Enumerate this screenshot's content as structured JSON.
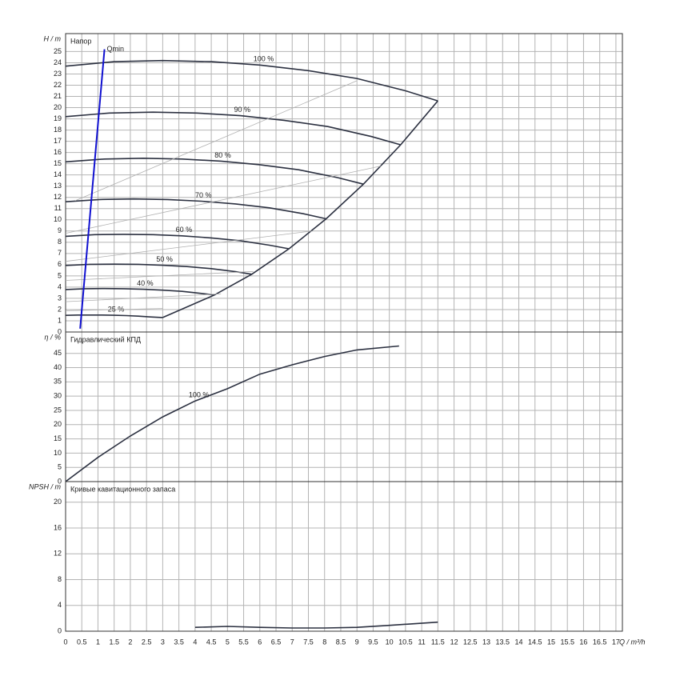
{
  "chart_data": [
    {
      "type": "line",
      "title": "Напор",
      "ylabel": "H / m",
      "xlim": [
        0,
        17.2
      ],
      "ylim": [
        0,
        26.6
      ],
      "yticks": [
        0,
        1,
        2,
        3,
        4,
        5,
        6,
        7,
        8,
        9,
        10,
        11,
        12,
        13,
        14,
        15,
        16,
        17,
        18,
        19,
        20,
        21,
        22,
        23,
        24,
        25
      ],
      "series": [
        {
          "name": "100 %",
          "color": "#2b3040",
          "x": [
            0,
            1.5,
            3,
            4.5,
            6,
            7.5,
            9,
            10.5,
            11.5
          ],
          "values": [
            23.7,
            24.1,
            24.2,
            24.1,
            23.8,
            23.3,
            22.6,
            21.5,
            20.6
          ]
        },
        {
          "name": "90 %",
          "color": "#2b3040",
          "x": [
            0,
            1.35,
            2.7,
            4.05,
            5.4,
            6.75,
            8.1,
            9.45,
            10.35
          ],
          "values": [
            19.2,
            19.52,
            19.6,
            19.52,
            19.28,
            18.87,
            18.31,
            17.42,
            16.69
          ]
        },
        {
          "name": "80 %",
          "color": "#2b3040",
          "x": [
            0,
            1.2,
            2.4,
            3.6,
            4.8,
            6,
            7.2,
            8.4,
            9.2
          ],
          "values": [
            15.17,
            15.42,
            15.49,
            15.42,
            15.23,
            14.91,
            14.46,
            13.76,
            13.18
          ]
        },
        {
          "name": "70 %",
          "color": "#2b3040",
          "x": [
            0,
            1.05,
            2.1,
            3.15,
            4.2,
            5.25,
            6.3,
            7.35,
            8.05
          ],
          "values": [
            11.61,
            11.81,
            11.86,
            11.81,
            11.66,
            11.42,
            11.07,
            10.54,
            10.09
          ]
        },
        {
          "name": "60 %",
          "color": "#2b3040",
          "x": [
            0,
            0.9,
            1.8,
            2.7,
            3.6,
            4.5,
            5.4,
            6.3,
            6.9
          ],
          "values": [
            8.53,
            8.68,
            8.71,
            8.68,
            8.57,
            8.39,
            8.14,
            7.74,
            7.42
          ]
        },
        {
          "name": "50 %",
          "color": "#2b3040",
          "x": [
            0,
            0.75,
            1.5,
            2.25,
            3,
            3.75,
            4.5,
            5.25,
            5.75
          ],
          "values": [
            5.93,
            6.03,
            6.05,
            6.03,
            5.95,
            5.83,
            5.65,
            5.38,
            5.15
          ]
        },
        {
          "name": "40 %",
          "color": "#2b3040",
          "x": [
            0,
            0.6,
            1.2,
            1.8,
            2.4,
            3,
            3.6,
            4.2,
            4.6
          ],
          "values": [
            3.79,
            3.86,
            3.87,
            3.86,
            3.81,
            3.73,
            3.62,
            3.44,
            3.3
          ]
        },
        {
          "name": "25 %",
          "color": "#2b3040",
          "x": [
            0,
            0.375,
            0.75,
            1.125,
            1.5,
            1.875,
            2.25,
            2.625,
            3
          ],
          "values": [
            1.48,
            1.51,
            1.51,
            1.51,
            1.49,
            1.46,
            1.41,
            1.34,
            1.29
          ]
        },
        {
          "color": "#2b3040",
          "x": [
            3,
            4.6,
            5.75,
            6.9,
            8.05,
            9.2,
            10.35,
            11.5
          ],
          "values": [
            1.29,
            3.3,
            5.15,
            7.42,
            10.09,
            13.18,
            16.69,
            20.6
          ]
        },
        {
          "color": "#b0b0b0",
          "x": [
            0.3,
            9.0
          ],
          "values": [
            11.7,
            22.4
          ]
        },
        {
          "color": "#b0b0b0",
          "x": [
            0,
            9.75
          ],
          "values": [
            8.8,
            14.8
          ]
        },
        {
          "color": "#b0b0b0",
          "x": [
            0,
            7.6
          ],
          "values": [
            6.3,
            9.0
          ]
        },
        {
          "color": "#b0b0b0",
          "x": [
            0,
            5.8
          ],
          "values": [
            4.6,
            5.4
          ]
        },
        {
          "color": "#b0b0b0",
          "x": [
            0,
            4.8
          ],
          "values": [
            2.7,
            3.4
          ]
        },
        {
          "color": "#b0b0b0",
          "x": [
            0,
            3
          ],
          "values": [
            1.9,
            2.1
          ]
        },
        {
          "name": "Qmin",
          "color": "#1010d0",
          "x": [
            0.45,
            1.2
          ],
          "values": [
            0.3,
            25.2
          ]
        }
      ]
    },
    {
      "type": "line",
      "title": "Гидравлический КПД",
      "ylabel": "η / %",
      "xlim": [
        0,
        17.2
      ],
      "ylim": [
        0,
        52.5
      ],
      "yticks": [
        0,
        5,
        10,
        15,
        20,
        25,
        30,
        35,
        40,
        45
      ],
      "series": [
        {
          "name": "100 %",
          "color": "#2b3040",
          "x": [
            0,
            1,
            2,
            3,
            4,
            5,
            6,
            7,
            8,
            9,
            10.3
          ],
          "values": [
            0,
            8.5,
            16,
            22.7,
            28.3,
            32.6,
            37.7,
            41,
            43.9,
            46.2,
            47.6
          ]
        }
      ]
    },
    {
      "type": "line",
      "title": "Кривые кавитационного запаса",
      "ylabel": "NPSH / m",
      "xlabel": "Q / m³/h",
      "xlim": [
        0,
        17.2
      ],
      "ylim": [
        0,
        23.2
      ],
      "yticks": [
        0,
        4,
        8,
        12,
        16,
        20
      ],
      "xticks": [
        0,
        0.5,
        1,
        1.5,
        2,
        2.5,
        3,
        3.5,
        4,
        4.5,
        5,
        5.5,
        6,
        6.5,
        7,
        7.5,
        8,
        8.5,
        9,
        9.5,
        10,
        10.5,
        11,
        11.5,
        12,
        12.5,
        13,
        13.5,
        14,
        14.5,
        15,
        15.5,
        16,
        16.5,
        17
      ],
      "series": [
        {
          "color": "#2b3040",
          "x": [
            4,
            5,
            6,
            7,
            8,
            9,
            10,
            11.5
          ],
          "values": [
            0.6,
            0.75,
            0.6,
            0.5,
            0.5,
            0.6,
            0.9,
            1.4
          ]
        }
      ]
    }
  ]
}
